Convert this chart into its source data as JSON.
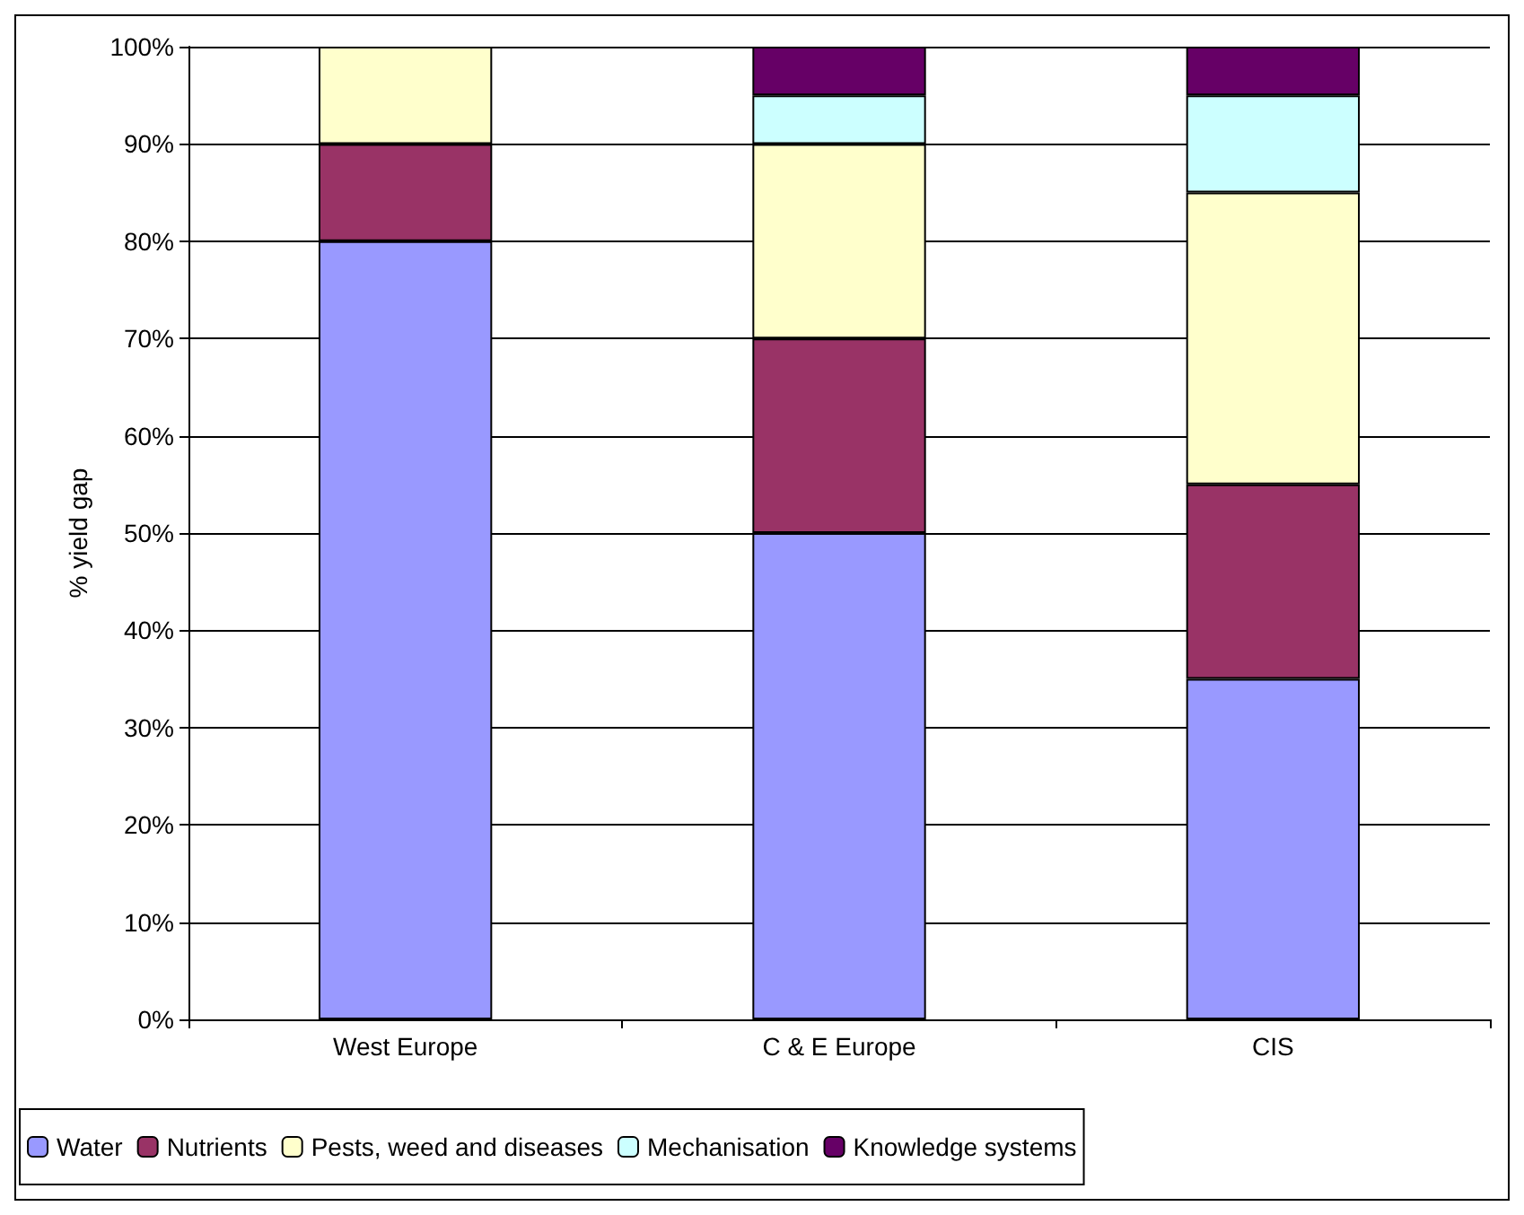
{
  "chart_data": {
    "type": "bar",
    "stacked": true,
    "ylabel": "% yield gap",
    "categories": [
      "West Europe",
      "C & E Europe",
      "CIS"
    ],
    "series": [
      {
        "name": "Water",
        "color": "#9999ff",
        "values": [
          80,
          50,
          35
        ]
      },
      {
        "name": "Nutrients",
        "color": "#993366",
        "values": [
          10,
          20,
          20
        ]
      },
      {
        "name": "Pests, weed and diseases",
        "color": "#ffffcc",
        "values": [
          10,
          20,
          30
        ]
      },
      {
        "name": "Mechanisation",
        "color": "#ccffff",
        "values": [
          0,
          5,
          10
        ]
      },
      {
        "name": "Knowledge systems",
        "color": "#660066",
        "values": [
          0,
          5,
          5
        ]
      }
    ],
    "ylim": [
      0,
      100
    ],
    "yticks": [
      {
        "value": 0,
        "label": "0%"
      },
      {
        "value": 10,
        "label": "10%"
      },
      {
        "value": 20,
        "label": "20%"
      },
      {
        "value": 30,
        "label": "30%"
      },
      {
        "value": 40,
        "label": "40%"
      },
      {
        "value": 50,
        "label": "50%"
      },
      {
        "value": 60,
        "label": "60%"
      },
      {
        "value": 70,
        "label": "70%"
      },
      {
        "value": 80,
        "label": "80%"
      },
      {
        "value": 90,
        "label": "90%"
      },
      {
        "value": 100,
        "label": "100%"
      }
    ],
    "grid": "y",
    "legend": "bottom"
  }
}
